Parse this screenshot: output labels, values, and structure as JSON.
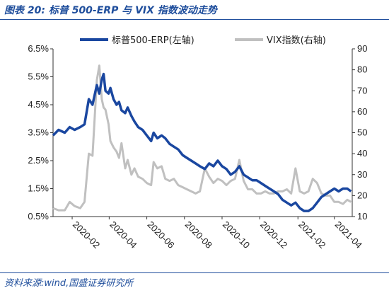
{
  "title": "图表 20:  标普 500-ERP 与 VIX 指数波动走势",
  "source": "资料来源:wind,国盛证券研究所",
  "chart_data": {
    "type": "line",
    "x_ticks": [
      "2020-02",
      "2020-04",
      "2020-06",
      "2020-08",
      "2020-10",
      "2020-12",
      "2021-02",
      "2021-04"
    ],
    "x_range": [
      "2020-01-01",
      "2021-04-30"
    ],
    "left_axis": {
      "ticks": [
        "0.5%",
        "1.5%",
        "2.5%",
        "3.5%",
        "4.5%",
        "5.5%",
        "6.5%"
      ],
      "ylim": [
        0.5,
        6.5
      ]
    },
    "right_axis": {
      "ticks": [
        "10",
        "20",
        "30",
        "40",
        "50",
        "60",
        "70",
        "80",
        "90"
      ],
      "ylim": [
        10,
        90
      ]
    },
    "legend_position": "top",
    "series": [
      {
        "name": "标普500-ERP(左轴)",
        "axis": "left",
        "color": "#1a47a0",
        "points": [
          [
            "2020-01-01",
            3.4
          ],
          [
            "2020-01-10",
            3.6
          ],
          [
            "2020-01-20",
            3.5
          ],
          [
            "2020-01-28",
            3.7
          ],
          [
            "2020-02-05",
            3.6
          ],
          [
            "2020-02-14",
            3.7
          ],
          [
            "2020-02-21",
            3.8
          ],
          [
            "2020-02-28",
            4.7
          ],
          [
            "2020-03-05",
            4.5
          ],
          [
            "2020-03-12",
            5.2
          ],
          [
            "2020-03-16",
            4.9
          ],
          [
            "2020-03-20",
            5.4
          ],
          [
            "2020-03-23",
            5.6
          ],
          [
            "2020-03-26",
            5.0
          ],
          [
            "2020-03-31",
            4.9
          ],
          [
            "2020-04-03",
            5.1
          ],
          [
            "2020-04-08",
            4.7
          ],
          [
            "2020-04-13",
            4.5
          ],
          [
            "2020-04-17",
            4.6
          ],
          [
            "2020-04-21",
            4.3
          ],
          [
            "2020-04-27",
            4.2
          ],
          [
            "2020-05-01",
            4.4
          ],
          [
            "2020-05-07",
            4.1
          ],
          [
            "2020-05-12",
            3.9
          ],
          [
            "2020-05-18",
            3.7
          ],
          [
            "2020-05-25",
            3.6
          ],
          [
            "2020-06-01",
            3.4
          ],
          [
            "2020-06-08",
            3.2
          ],
          [
            "2020-06-12",
            3.5
          ],
          [
            "2020-06-18",
            3.3
          ],
          [
            "2020-06-25",
            3.4
          ],
          [
            "2020-07-01",
            3.3
          ],
          [
            "2020-07-08",
            3.1
          ],
          [
            "2020-07-15",
            3.0
          ],
          [
            "2020-07-22",
            2.9
          ],
          [
            "2020-07-29",
            2.7
          ],
          [
            "2020-08-05",
            2.6
          ],
          [
            "2020-08-12",
            2.5
          ],
          [
            "2020-08-19",
            2.4
          ],
          [
            "2020-08-26",
            2.3
          ],
          [
            "2020-09-03",
            2.2
          ],
          [
            "2020-09-10",
            2.4
          ],
          [
            "2020-09-17",
            2.3
          ],
          [
            "2020-09-24",
            2.5
          ],
          [
            "2020-10-01",
            2.3
          ],
          [
            "2020-10-08",
            2.2
          ],
          [
            "2020-10-15",
            2.0
          ],
          [
            "2020-10-22",
            2.1
          ],
          [
            "2020-10-29",
            2.3
          ],
          [
            "2020-11-05",
            2.0
          ],
          [
            "2020-11-12",
            1.9
          ],
          [
            "2020-11-19",
            1.8
          ],
          [
            "2020-11-26",
            1.8
          ],
          [
            "2020-12-03",
            1.7
          ],
          [
            "2020-12-10",
            1.6
          ],
          [
            "2020-12-17",
            1.5
          ],
          [
            "2020-12-24",
            1.4
          ],
          [
            "2020-12-31",
            1.3
          ],
          [
            "2021-01-07",
            1.1
          ],
          [
            "2021-01-14",
            1.0
          ],
          [
            "2021-01-21",
            0.9
          ],
          [
            "2021-01-28",
            1.0
          ],
          [
            "2021-02-04",
            0.8
          ],
          [
            "2021-02-11",
            0.7
          ],
          [
            "2021-02-18",
            0.7
          ],
          [
            "2021-02-25",
            0.8
          ],
          [
            "2021-03-04",
            1.0
          ],
          [
            "2021-03-11",
            1.2
          ],
          [
            "2021-03-18",
            1.3
          ],
          [
            "2021-03-25",
            1.4
          ],
          [
            "2021-04-01",
            1.5
          ],
          [
            "2021-04-08",
            1.4
          ],
          [
            "2021-04-15",
            1.5
          ],
          [
            "2021-04-22",
            1.5
          ],
          [
            "2021-04-28",
            1.4
          ]
        ]
      },
      {
        "name": "VIX指数(右轴)",
        "axis": "right",
        "color": "#c0c0c0",
        "points": [
          [
            "2020-01-01",
            14
          ],
          [
            "2020-01-10",
            13
          ],
          [
            "2020-01-20",
            13
          ],
          [
            "2020-01-28",
            17
          ],
          [
            "2020-02-05",
            15
          ],
          [
            "2020-02-14",
            14
          ],
          [
            "2020-02-21",
            17
          ],
          [
            "2020-02-28",
            40
          ],
          [
            "2020-03-05",
            39
          ],
          [
            "2020-03-12",
            75
          ],
          [
            "2020-03-16",
            82
          ],
          [
            "2020-03-20",
            66
          ],
          [
            "2020-03-23",
            62
          ],
          [
            "2020-03-26",
            61
          ],
          [
            "2020-03-31",
            54
          ],
          [
            "2020-04-03",
            46
          ],
          [
            "2020-04-08",
            43
          ],
          [
            "2020-04-13",
            41
          ],
          [
            "2020-04-17",
            38
          ],
          [
            "2020-04-21",
            45
          ],
          [
            "2020-04-27",
            33
          ],
          [
            "2020-05-01",
            37
          ],
          [
            "2020-05-07",
            30
          ],
          [
            "2020-05-12",
            33
          ],
          [
            "2020-05-18",
            29
          ],
          [
            "2020-05-25",
            28
          ],
          [
            "2020-06-01",
            26
          ],
          [
            "2020-06-08",
            25
          ],
          [
            "2020-06-12",
            36
          ],
          [
            "2020-06-18",
            33
          ],
          [
            "2020-06-25",
            34
          ],
          [
            "2020-07-01",
            28
          ],
          [
            "2020-07-08",
            27
          ],
          [
            "2020-07-15",
            28
          ],
          [
            "2020-07-22",
            25
          ],
          [
            "2020-07-29",
            24
          ],
          [
            "2020-08-05",
            23
          ],
          [
            "2020-08-12",
            22
          ],
          [
            "2020-08-19",
            21
          ],
          [
            "2020-08-26",
            22
          ],
          [
            "2020-09-03",
            33
          ],
          [
            "2020-09-10",
            29
          ],
          [
            "2020-09-17",
            26
          ],
          [
            "2020-09-24",
            28
          ],
          [
            "2020-10-01",
            27
          ],
          [
            "2020-10-08",
            25
          ],
          [
            "2020-10-15",
            27
          ],
          [
            "2020-10-22",
            28
          ],
          [
            "2020-10-29",
            37
          ],
          [
            "2020-11-05",
            27
          ],
          [
            "2020-11-12",
            23
          ],
          [
            "2020-11-19",
            23
          ],
          [
            "2020-11-26",
            21
          ],
          [
            "2020-12-03",
            21
          ],
          [
            "2020-12-10",
            22
          ],
          [
            "2020-12-17",
            21
          ],
          [
            "2020-12-24",
            21
          ],
          [
            "2020-12-31",
            22
          ],
          [
            "2021-01-07",
            22
          ],
          [
            "2021-01-14",
            23
          ],
          [
            "2021-01-21",
            21
          ],
          [
            "2021-01-28",
            33
          ],
          [
            "2021-02-04",
            22
          ],
          [
            "2021-02-11",
            21
          ],
          [
            "2021-02-18",
            22
          ],
          [
            "2021-02-25",
            28
          ],
          [
            "2021-03-04",
            26
          ],
          [
            "2021-03-11",
            21
          ],
          [
            "2021-03-18",
            20
          ],
          [
            "2021-03-25",
            20
          ],
          [
            "2021-04-01",
            17
          ],
          [
            "2021-04-08",
            17
          ],
          [
            "2021-04-15",
            16
          ],
          [
            "2021-04-22",
            18
          ],
          [
            "2021-04-28",
            17
          ]
        ]
      }
    ]
  }
}
